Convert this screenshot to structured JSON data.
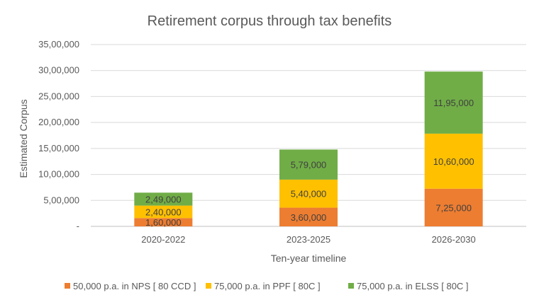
{
  "chart_data": {
    "type": "bar",
    "stacked": true,
    "title": "Retirement corpus through tax benefits",
    "xlabel": "Ten-year timeline",
    "ylabel": "Estimated Corpus",
    "categories": [
      "2020-2022",
      "2023-2025",
      "2026-2030"
    ],
    "ylim": [
      0,
      3500000
    ],
    "yticks": [
      0,
      500000,
      1000000,
      1500000,
      2000000,
      2500000,
      3000000,
      3500000
    ],
    "ytick_labels": [
      "-",
      "5,00,000",
      "10,00,000",
      "15,00,000",
      "20,00,000",
      "25,00,000",
      "30,00,000",
      "35,00,000"
    ],
    "grid": true,
    "legend_position": "bottom",
    "series": [
      {
        "name": "50,000 p.a. in NPS [ 80 CCD ]",
        "color": "#ED7D31",
        "values": [
          160000,
          360000,
          725000
        ],
        "labels": [
          "1,60,000",
          "3,60,000",
          "7,25,000"
        ]
      },
      {
        "name": "75,000 p.a. in PPF [ 80C ]",
        "color": "#FFC000",
        "values": [
          240000,
          540000,
          1060000
        ],
        "labels": [
          "2,40,000",
          "5,40,000",
          "10,60,000"
        ]
      },
      {
        "name": "75,000 p.a. in ELSS [ 80C ]",
        "color": "#70AD47",
        "values": [
          249000,
          579000,
          1195000
        ],
        "labels": [
          "2,49,000",
          "5,79,000",
          "11,95,000"
        ]
      }
    ]
  }
}
